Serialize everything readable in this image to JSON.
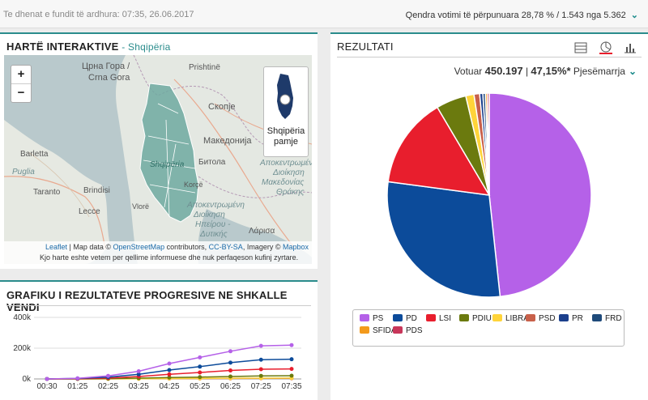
{
  "topbar": {
    "updated": "Te dhenat e fundit të ardhura: 07:35, 26.06.2017",
    "centers": "Qendra votimi të përpunuara 28,78 % / 1.543 nga 5.362"
  },
  "map_panel": {
    "title": "HARTË INTERAKTIVE",
    "subtitle": "Shqipëria",
    "zoom_in": "+",
    "zoom_out": "−",
    "view_toggle": "Shqipëria pamje",
    "attribution": {
      "leaflet": "Leaflet",
      "text1": " | Map data © ",
      "osm": "OpenStreetMap",
      "text2": " contributors, ",
      "ccbysa": "CC-BY-SA",
      "text3": ", Imagery © ",
      "mapbox": "Mapbox",
      "disclaimer": "Kjo harte eshte vetem per qellime informuese dhe nuk perfaqeson kufinj zyrtare."
    },
    "place_labels": {
      "crna_gora_1": "Црна Гора /",
      "crna_gora_2": "Crna Gora",
      "prishtine": "Prishtinë",
      "skopje": "Скопје",
      "makedonija": "Македонија",
      "barletta": "Barletta",
      "puglia": "Puglia",
      "brindisi": "Brindisi",
      "taranto": "Taranto",
      "lecce": "Lecce",
      "bitola": "Битола",
      "shqiperia": "Shqipëria",
      "korce": "Korçë",
      "vlore": "Vlorë",
      "larisa": "Λάρισα",
      "ap_dioikisi_1": "Αποκεντρωμένη",
      "ap_dioikisi_2": "Διοίκηση",
      "ap_dioikisi_3": "Μακεδονίας",
      "ap_dioikisi_4": "Θράκης",
      "ep_dioikisi_1": "Αποκεντρωμένη",
      "ep_dioikisi_2": "Διοίκηση",
      "ep_dioikisi_3": "Ηπείρου -",
      "ep_dioikisi_4": "Δυτικής"
    }
  },
  "results_panel": {
    "title": "REZULTATI",
    "icons": [
      "table-icon",
      "pie-chart-icon",
      "bar-chart-icon"
    ],
    "voted_label": "Votuar",
    "voted_value": "450.197",
    "turnout_value": "47,15%*",
    "turnout_label": "Pjesëmarrja"
  },
  "progress_panel": {
    "title": "GRAFIKU I REZULTATEVE PROGRESIVE NE SHKALLE VENDI"
  },
  "chart_data": [
    {
      "type": "pie",
      "labels": [
        "PS",
        "PD",
        "LSI",
        "PDIU",
        "LIBRA",
        "PSD",
        "PR",
        "FRD",
        "SFIDA",
        "PDS"
      ],
      "values": [
        48.3,
        28.8,
        14.4,
        4.8,
        1.3,
        0.9,
        0.5,
        0.4,
        0.3,
        0.3
      ],
      "colors": [
        "#b561e8",
        "#0c4b9a",
        "#e81e2d",
        "#6b7a0e",
        "#ffd43a",
        "#c8604a",
        "#1b3f8c",
        "#1e4a7a",
        "#f39a1c",
        "#c8365a"
      ]
    },
    {
      "type": "line",
      "x": [
        "00:30",
        "01:25",
        "02:25",
        "03:25",
        "04:25",
        "05:25",
        "06:25",
        "07:25",
        "07:35"
      ],
      "yticks": [
        "0k",
        "200k",
        "400k"
      ],
      "ylim": [
        0,
        400000
      ],
      "series": [
        {
          "name": "PS",
          "color": "#b561e8",
          "values": [
            0,
            4000,
            20000,
            50000,
            100000,
            140000,
            180000,
            215000,
            220000
          ]
        },
        {
          "name": "PD",
          "color": "#0c4b9a",
          "values": [
            0,
            3000,
            12000,
            30000,
            58000,
            80000,
            106000,
            125000,
            128000
          ]
        },
        {
          "name": "LSI",
          "color": "#e81e2d",
          "values": [
            0,
            1500,
            6000,
            16000,
            30000,
            42000,
            55000,
            63000,
            65000
          ]
        },
        {
          "name": "PDIU",
          "color": "#6b7a0e",
          "values": [
            0,
            500,
            2000,
            5000,
            9000,
            12000,
            16000,
            20000,
            21000
          ]
        },
        {
          "name": "LIBRA",
          "color": "#ffd43a",
          "values": [
            0,
            200,
            700,
            1500,
            2500,
            3500,
            4500,
            5500,
            5800
          ]
        },
        {
          "name": "PSD",
          "color": "#c8604a",
          "values": [
            0,
            150,
            500,
            1100,
            1800,
            2500,
            3200,
            3900,
            4100
          ]
        }
      ]
    }
  ]
}
